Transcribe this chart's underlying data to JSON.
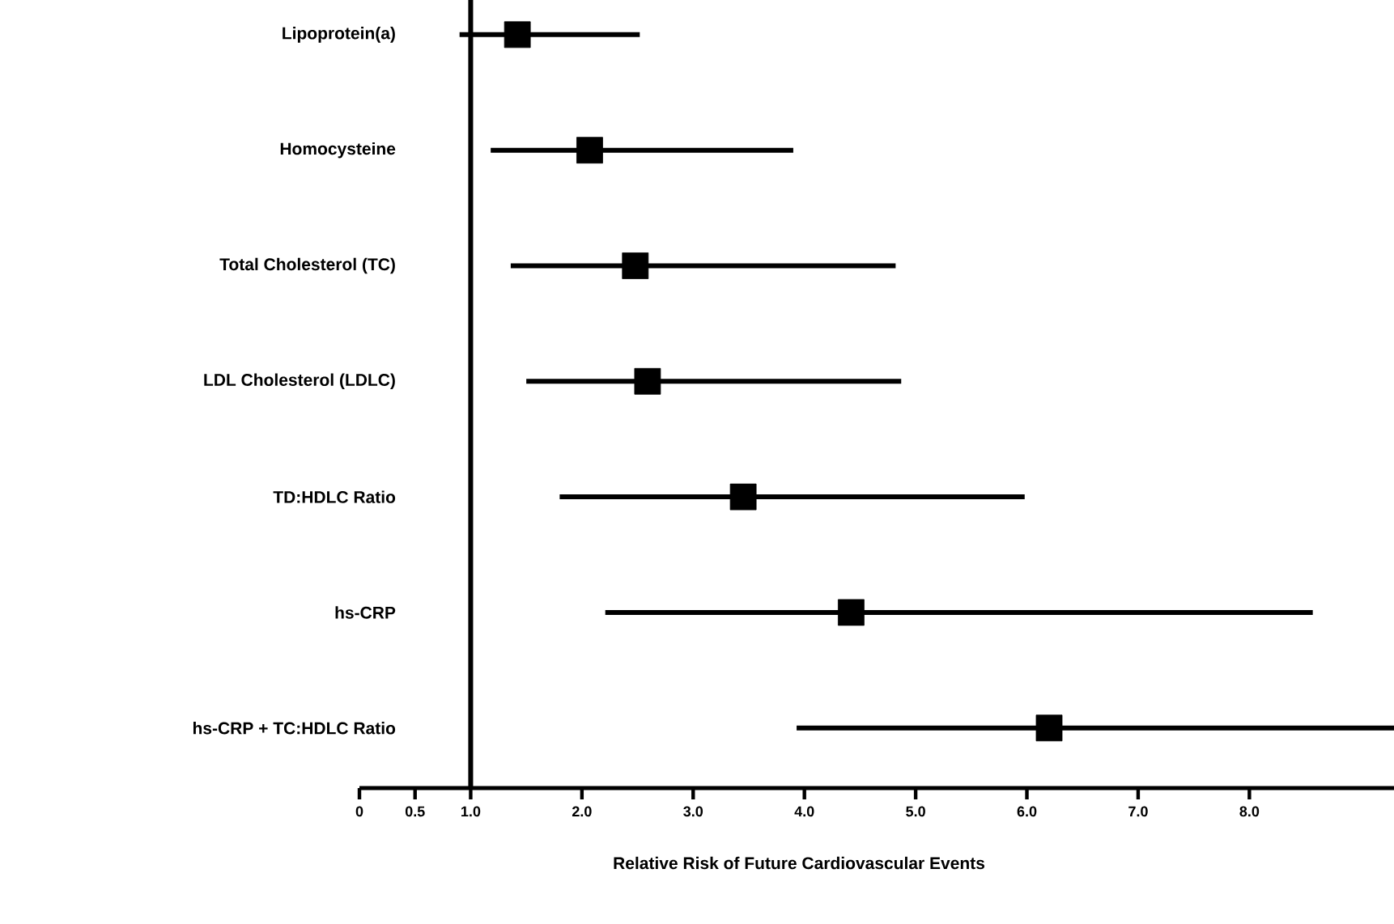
{
  "chart_data": {
    "type": "scatter",
    "orientation": "horizontal",
    "marker": "square",
    "color": "#000000",
    "xlabel": "Relative Risk of Future Cardiovascular Events",
    "categories": [
      "Lipoprotein(a)",
      "Homocysteine",
      "Total Cholesterol (TC)",
      "LDL Cholesterol (LDLC)",
      "TD:HDLC Ratio",
      "hs-CRP",
      "hs-CRP + TC:HDLC Ratio"
    ],
    "values": [
      1.42,
      2.07,
      2.48,
      2.59,
      3.45,
      4.42,
      6.2
    ],
    "errors": [
      [
        0.9,
        2.52
      ],
      [
        1.18,
        3.9
      ],
      [
        1.36,
        4.82
      ],
      [
        1.5,
        4.87
      ],
      [
        1.8,
        5.98
      ],
      [
        2.21,
        8.57
      ],
      [
        3.93,
        9.3
      ]
    ],
    "xlim": [
      0,
      9.3
    ],
    "xticks": [
      {
        "value": 0,
        "label": "0"
      },
      {
        "value": 0.5,
        "label": "0.5"
      },
      {
        "value": 1,
        "label": "1.0"
      },
      {
        "value": 2,
        "label": "2.0"
      },
      {
        "value": 3,
        "label": "3.0"
      },
      {
        "value": 4,
        "label": "4.0"
      },
      {
        "value": 5,
        "label": "5.0"
      },
      {
        "value": 6,
        "label": "6.0"
      },
      {
        "value": 7,
        "label": "7.0"
      },
      {
        "value": 8,
        "label": "8.0"
      }
    ],
    "ref_lines": [
      {
        "axis": "x",
        "value": 1
      }
    ]
  }
}
